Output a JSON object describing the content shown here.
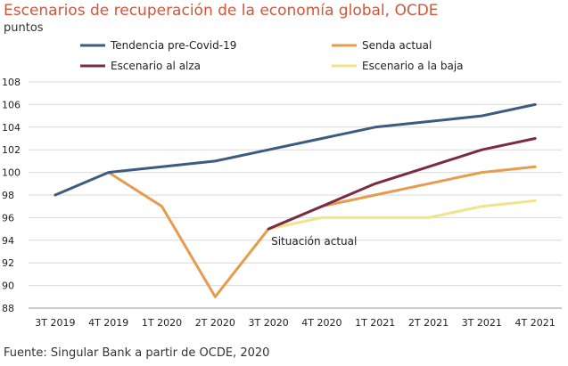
{
  "chart_data": {
    "type": "line",
    "title": "Escenarios de recuperación de la economía global, OCDE",
    "ylabel": "puntos",
    "source": "Fuente: Singular Bank a partir de OCDE, 2020",
    "categories": [
      "3T 2019",
      "4T 2019",
      "1T 2020",
      "2T 2020",
      "3T 2020",
      "4T 2020",
      "1T 2021",
      "2T 2021",
      "3T 2021",
      "4T 2021"
    ],
    "ylim": [
      88,
      108
    ],
    "yticks": [
      88,
      90,
      92,
      94,
      96,
      98,
      100,
      102,
      104,
      106,
      108
    ],
    "ytick_labels": [
      "88",
      "90",
      "92",
      "94",
      "96",
      "98",
      "100",
      "102",
      "104",
      "106",
      "108"
    ],
    "grid": true,
    "legend_position": "top",
    "annotation": {
      "text": "Situación actual",
      "category": "3T 2020",
      "value": 95
    },
    "series": [
      {
        "name": "Tendencia pre-Covid-19",
        "color": "#3d5a80",
        "values": [
          98,
          100,
          100.5,
          101,
          102,
          103,
          104,
          104.5,
          105,
          106
        ]
      },
      {
        "name": "Senda actual",
        "color": "#e69b4d",
        "values": [
          null,
          100,
          97,
          89,
          95,
          97,
          98,
          99,
          100,
          100.5
        ]
      },
      {
        "name": "Escenario al alza",
        "color": "#7a2a45",
        "values": [
          null,
          null,
          null,
          null,
          95,
          97,
          99,
          100.5,
          102,
          103
        ]
      },
      {
        "name": "Escenario a la baja",
        "color": "#efe48a",
        "values": [
          null,
          null,
          null,
          null,
          95,
          96,
          96,
          96,
          97,
          97.5
        ]
      }
    ]
  }
}
